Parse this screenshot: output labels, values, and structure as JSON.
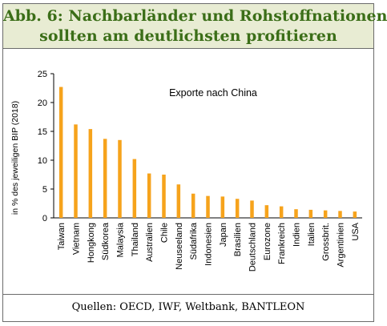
{
  "title": {
    "line1": "Abb. 6: Nachbarländer und Rohstoffnationen",
    "line2": "sollten am deutlichsten profitieren"
  },
  "footer": {
    "source": "Quellen: OECD, IWF, Weltbank, BANTLEON"
  },
  "colors": {
    "bar": "#f6a31c",
    "title_text": "#3b6e18",
    "title_bg": "#e8ecd3"
  },
  "chart_data": {
    "type": "bar",
    "title": "",
    "annotation": "Exporte nach China",
    "xlabel": "",
    "ylabel": "in % des jeweiligen BIP (2018)",
    "ylim": [
      0,
      25
    ],
    "yticks": [
      0,
      5,
      10,
      15,
      20,
      25
    ],
    "grid": false,
    "categories": [
      "Taiwan",
      "Vietnam",
      "Hongkong",
      "Südkorea",
      "Malaysia",
      "Thailand",
      "Australien",
      "Chile",
      "Neuseeland",
      "Südafrika",
      "Indonesien",
      "Japan",
      "Brasilien",
      "Deutschland",
      "Eurozone",
      "Frankreich",
      "Indien",
      "Italien",
      "Grossbrit.",
      "Argentinien",
      "USA"
    ],
    "values": [
      22.7,
      16.2,
      15.4,
      13.7,
      13.5,
      10.2,
      7.7,
      7.5,
      5.8,
      4.2,
      3.8,
      3.7,
      3.3,
      3.0,
      2.2,
      2.0,
      1.5,
      1.4,
      1.3,
      1.2,
      1.1
    ]
  }
}
